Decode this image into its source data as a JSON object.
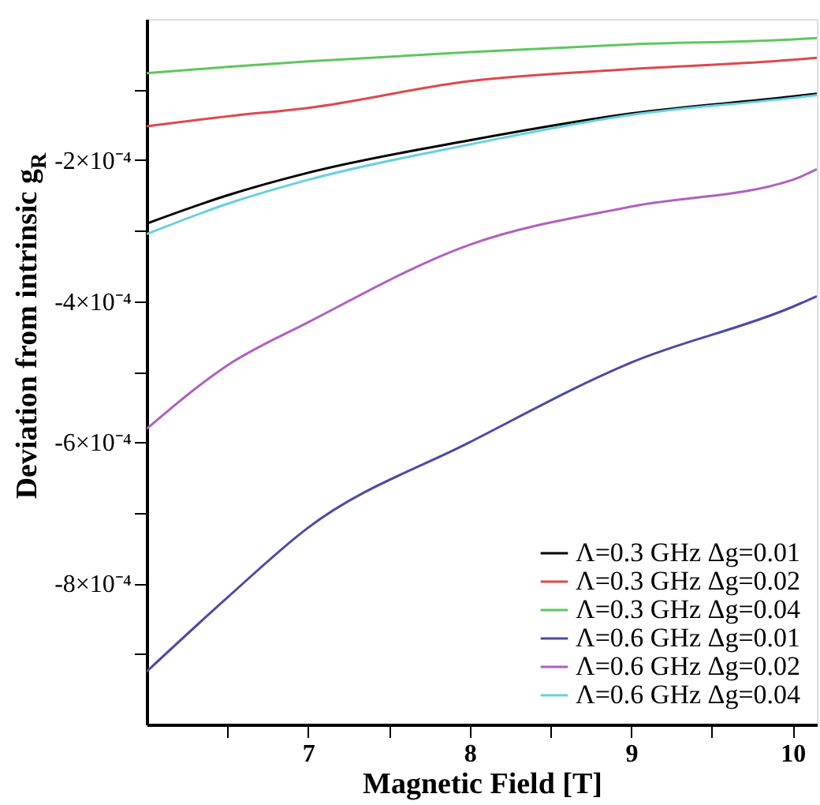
{
  "chart_data": {
    "type": "line",
    "xlabel": "Magnetic Field [T]",
    "ylabel": "Deviation from intrinsic g$_{R}$",
    "x": [
      6,
      6.5,
      7,
      8,
      9,
      10,
      10.15
    ],
    "series": [
      {
        "name": "Λ=0.3 GHz Δg=0.01",
        "color": "#000000",
        "values": [
          -0.00029,
          -0.00025,
          -0.000218,
          -0.000172,
          -0.000134,
          -0.00011,
          -0.000106
        ]
      },
      {
        "name": "Λ=0.3 GHz Δg=0.02",
        "color": "#e0474c",
        "values": [
          -0.000152,
          -0.000138,
          -0.000126,
          -8.8e-05,
          -7.1e-05,
          -5.8e-05,
          -5.5e-05
        ]
      },
      {
        "name": "Λ=0.3 GHz Δg=0.04",
        "color": "#5cc85c",
        "values": [
          -7.7e-05,
          -6.8e-05,
          -6e-05,
          -4.7e-05,
          -3.6e-05,
          -2.9e-05,
          -2.7e-05
        ]
      },
      {
        "name": "Λ=0.6 GHz Δg=0.01",
        "color": "#4a4aa8",
        "values": [
          -0.000925,
          -0.00082,
          -0.000721,
          -0.0006,
          -0.000487,
          -0.000408,
          -0.000393
        ]
      },
      {
        "name": "Λ=0.6 GHz Δg=0.02",
        "color": "#b060c0",
        "values": [
          -0.000581,
          -0.000491,
          -0.00043,
          -0.00032,
          -0.000266,
          -0.000228,
          -0.000213
        ]
      },
      {
        "name": "Λ=0.6 GHz Δg=0.04",
        "color": "#66d0e0",
        "values": [
          -0.000305,
          -0.000262,
          -0.000228,
          -0.000178,
          -0.000136,
          -0.000112,
          -0.000108
        ]
      }
    ],
    "xlim": [
      6,
      10.15
    ],
    "xticks": [
      {
        "value": 6.5,
        "label": null
      },
      7,
      {
        "value": 7.5,
        "label": null
      },
      8,
      {
        "value": 8.5,
        "label": null
      },
      9,
      {
        "value": 9.5,
        "label": null
      },
      10
    ],
    "ylim": [
      -0.001,
      0
    ],
    "yticks": [
      {
        "value": -0.0009,
        "label": null
      },
      {
        "value": -0.0008,
        "label": "-8×10⁻⁴"
      },
      {
        "value": -0.0007,
        "label": null
      },
      {
        "value": -0.0006,
        "label": "-6×10⁻⁴"
      },
      {
        "value": -0.0005,
        "label": null
      },
      {
        "value": -0.0004,
        "label": "-4×10⁻⁴"
      },
      {
        "value": -0.0003,
        "label": null
      },
      {
        "value": -0.0002,
        "label": "-2×10⁻⁴"
      },
      {
        "value": -0.0001,
        "label": null
      }
    ],
    "grid": false,
    "legend": "bottom right",
    "line_style": "solid",
    "marker": "none"
  }
}
